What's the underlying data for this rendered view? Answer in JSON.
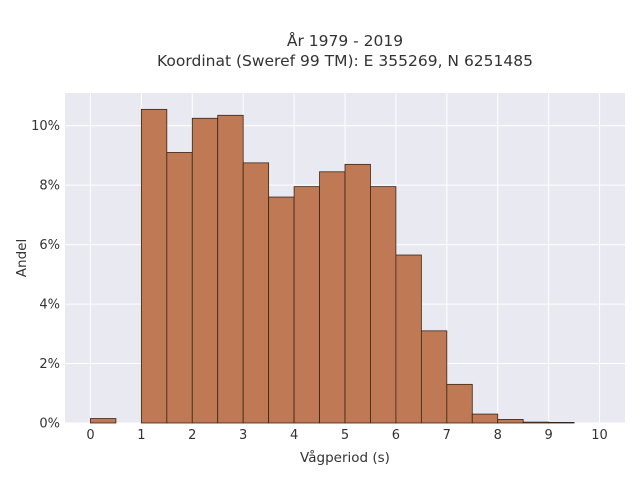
{
  "chart_data": {
    "type": "bar",
    "title_line1": "År 1979 - 2019",
    "title_line2": "Koordinat (Sweref 99 TM): E 355269, N 6251485",
    "xlabel": "Vågperiod (s)",
    "ylabel": "Andel",
    "xlim": [
      -0.5,
      10.5
    ],
    "ylim": [
      0,
      11.1
    ],
    "x_ticks": [
      0,
      1,
      2,
      3,
      4,
      5,
      6,
      7,
      8,
      9,
      10
    ],
    "y_ticks": [
      0,
      2,
      4,
      6,
      8,
      10
    ],
    "y_tick_labels": [
      "0%",
      "2%",
      "4%",
      "6%",
      "8%",
      "10%"
    ],
    "bin_width": 0.5,
    "bars": [
      {
        "x0": 0.0,
        "x1": 0.5,
        "value": 0.15
      },
      {
        "x0": 1.0,
        "x1": 1.5,
        "value": 10.55
      },
      {
        "x0": 1.5,
        "x1": 2.0,
        "value": 9.1
      },
      {
        "x0": 2.0,
        "x1": 2.5,
        "value": 10.25
      },
      {
        "x0": 2.5,
        "x1": 3.0,
        "value": 10.35
      },
      {
        "x0": 3.0,
        "x1": 3.5,
        "value": 8.75
      },
      {
        "x0": 3.5,
        "x1": 4.0,
        "value": 7.6
      },
      {
        "x0": 4.0,
        "x1": 4.5,
        "value": 7.95
      },
      {
        "x0": 4.5,
        "x1": 5.0,
        "value": 8.45
      },
      {
        "x0": 5.0,
        "x1": 5.5,
        "value": 8.7
      },
      {
        "x0": 5.5,
        "x1": 6.0,
        "value": 7.95
      },
      {
        "x0": 6.0,
        "x1": 6.5,
        "value": 5.65
      },
      {
        "x0": 6.5,
        "x1": 7.0,
        "value": 3.1
      },
      {
        "x0": 7.0,
        "x1": 7.5,
        "value": 1.3
      },
      {
        "x0": 7.5,
        "x1": 8.0,
        "value": 0.3
      },
      {
        "x0": 8.0,
        "x1": 8.5,
        "value": 0.12
      },
      {
        "x0": 8.5,
        "x1": 9.0,
        "value": 0.03
      },
      {
        "x0": 9.0,
        "x1": 9.5,
        "value": 0.02
      }
    ],
    "grid": true,
    "bar_color": "#bf7a55",
    "bar_edge_color": "#3b2416",
    "plot_bg_color": "#e9e9f1",
    "grid_color": "#ffffff"
  }
}
